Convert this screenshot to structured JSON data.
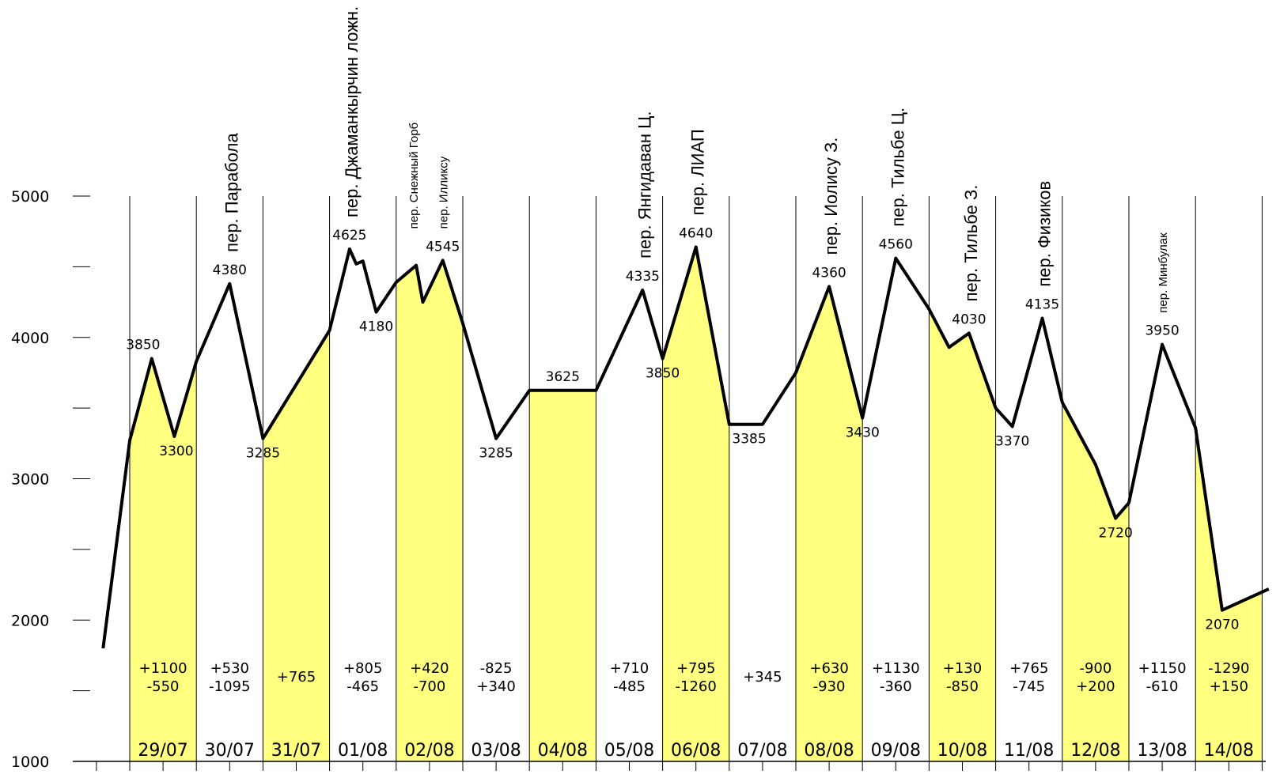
{
  "chart_data": {
    "type": "area",
    "title": "",
    "xlabel": "",
    "ylabel": "",
    "ylim": [
      1000,
      5000
    ],
    "yticks": [
      "1000",
      "2000",
      "3000",
      "4000",
      "5000"
    ],
    "fill_color": "#ffff80",
    "line_color": "#000000",
    "days": [
      {
        "date": "29/07",
        "highlighted": true,
        "delta": [
          "+1100",
          "-550"
        ]
      },
      {
        "date": "30/07",
        "highlighted": false,
        "delta": [
          "+530",
          "-1095"
        ]
      },
      {
        "date": "31/07",
        "highlighted": true,
        "delta": [
          "+765"
        ]
      },
      {
        "date": "01/08",
        "highlighted": false,
        "delta": [
          "+805",
          "-465"
        ]
      },
      {
        "date": "02/08",
        "highlighted": true,
        "delta": [
          "+420",
          "-700"
        ]
      },
      {
        "date": "03/08",
        "highlighted": false,
        "delta": [
          "-825",
          "+340"
        ]
      },
      {
        "date": "04/08",
        "highlighted": true,
        "delta": []
      },
      {
        "date": "05/08",
        "highlighted": false,
        "delta": [
          "+710",
          "-485"
        ]
      },
      {
        "date": "06/08",
        "highlighted": true,
        "delta": [
          "+795",
          "-1260"
        ]
      },
      {
        "date": "07/08",
        "highlighted": false,
        "delta": [
          "+345"
        ]
      },
      {
        "date": "08/08",
        "highlighted": true,
        "delta": [
          "+630",
          "-930"
        ]
      },
      {
        "date": "09/08",
        "highlighted": false,
        "delta": [
          "+1130",
          "-360"
        ]
      },
      {
        "date": "10/08",
        "highlighted": true,
        "delta": [
          "+130",
          "-850"
        ]
      },
      {
        "date": "11/08",
        "highlighted": false,
        "delta": [
          "+765",
          "-745"
        ]
      },
      {
        "date": "12/08",
        "highlighted": true,
        "delta": [
          "-900",
          "+200"
        ]
      },
      {
        "date": "13/08",
        "highlighted": false,
        "delta": [
          "+1150",
          "-610"
        ]
      },
      {
        "date": "14/08",
        "highlighted": true,
        "delta": [
          "-1290",
          "+150"
        ]
      }
    ],
    "profile": [
      [
        -0.4,
        1800
      ],
      [
        0.0,
        3270
      ],
      [
        0.33,
        3850
      ],
      [
        0.67,
        3300
      ],
      [
        1.0,
        3830
      ],
      [
        1.5,
        4380
      ],
      [
        2.0,
        3285
      ],
      [
        3.0,
        4050
      ],
      [
        3.3,
        4625
      ],
      [
        3.4,
        4520
      ],
      [
        3.5,
        4540
      ],
      [
        3.7,
        4180
      ],
      [
        4.0,
        4390
      ],
      [
        4.3,
        4510
      ],
      [
        4.4,
        4250
      ],
      [
        4.7,
        4545
      ],
      [
        5.0,
        4100
      ],
      [
        5.5,
        3285
      ],
      [
        6.0,
        3625
      ],
      [
        7.0,
        3625
      ],
      [
        7.7,
        4335
      ],
      [
        8.0,
        3850
      ],
      [
        8.5,
        4640
      ],
      [
        9.0,
        3385
      ],
      [
        9.5,
        3385
      ],
      [
        10.0,
        3750
      ],
      [
        10.5,
        4360
      ],
      [
        11.0,
        3430
      ],
      [
        11.5,
        4560
      ],
      [
        12.0,
        4200
      ],
      [
        12.3,
        3930
      ],
      [
        12.6,
        4030
      ],
      [
        13.0,
        3500
      ],
      [
        13.25,
        3370
      ],
      [
        13.7,
        4135
      ],
      [
        14.0,
        3540
      ],
      [
        14.5,
        3100
      ],
      [
        14.8,
        2720
      ],
      [
        15.0,
        2830
      ],
      [
        15.5,
        3950
      ],
      [
        16.0,
        3360
      ],
      [
        16.4,
        2070
      ],
      [
        17.1,
        2220
      ]
    ],
    "labels": [
      {
        "text": "3850",
        "x": 0.2,
        "y": 3850,
        "anchor": "above"
      },
      {
        "text": "3300",
        "x": 0.7,
        "y": 3300,
        "anchor": "below"
      },
      {
        "text": "4380",
        "x": 1.5,
        "y": 4380,
        "anchor": "above"
      },
      {
        "text": "3285",
        "x": 2.0,
        "y": 3285,
        "anchor": "below"
      },
      {
        "text": "4625",
        "x": 3.3,
        "y": 4625,
        "anchor": "above"
      },
      {
        "text": "4180",
        "x": 3.7,
        "y": 4180,
        "anchor": "below"
      },
      {
        "text": "4545",
        "x": 4.7,
        "y": 4545,
        "anchor": "above"
      },
      {
        "text": "3285",
        "x": 5.5,
        "y": 3285,
        "anchor": "below"
      },
      {
        "text": "3625",
        "x": 6.5,
        "y": 3625,
        "anchor": "above"
      },
      {
        "text": "4335",
        "x": 7.7,
        "y": 4335,
        "anchor": "above"
      },
      {
        "text": "3850",
        "x": 8.0,
        "y": 3850,
        "anchor": "below"
      },
      {
        "text": "4640",
        "x": 8.5,
        "y": 4640,
        "anchor": "above"
      },
      {
        "text": "3385",
        "x": 9.3,
        "y": 3385,
        "anchor": "below"
      },
      {
        "text": "4360",
        "x": 10.5,
        "y": 4360,
        "anchor": "above"
      },
      {
        "text": "3430",
        "x": 11.0,
        "y": 3430,
        "anchor": "below"
      },
      {
        "text": "4560",
        "x": 11.5,
        "y": 4560,
        "anchor": "above"
      },
      {
        "text": "4030",
        "x": 12.6,
        "y": 4030,
        "anchor": "above"
      },
      {
        "text": "3370",
        "x": 13.25,
        "y": 3370,
        "anchor": "below"
      },
      {
        "text": "4135",
        "x": 13.7,
        "y": 4135,
        "anchor": "above"
      },
      {
        "text": "2720",
        "x": 14.8,
        "y": 2720,
        "anchor": "below"
      },
      {
        "text": "3950",
        "x": 15.5,
        "y": 3950,
        "anchor": "above"
      },
      {
        "text": "2070",
        "x": 16.4,
        "y": 2070,
        "anchor": "below"
      }
    ],
    "passes": [
      {
        "text": "пер. Парабола",
        "x": 1.5,
        "y": 4380,
        "size": "large"
      },
      {
        "text": "пер. Джаманкырчин ложн.",
        "x": 3.3,
        "y": 4625,
        "size": "large"
      },
      {
        "text": "пер. Снежный Горб",
        "x": 4.25,
        "y": 4545,
        "size": "small"
      },
      {
        "text": "пер. Илликсу",
        "x": 4.7,
        "y": 4545,
        "size": "small"
      },
      {
        "text": "пер. Янгидаван Ц.",
        "x": 7.7,
        "y": 4335,
        "size": "large"
      },
      {
        "text": "пер. ЛИАП",
        "x": 8.5,
        "y": 4640,
        "size": "large"
      },
      {
        "text": "пер. Иолису З.",
        "x": 10.5,
        "y": 4360,
        "size": "large"
      },
      {
        "text": "пер. Тильбе Ц.",
        "x": 11.5,
        "y": 4560,
        "size": "large"
      },
      {
        "text": "пер. Тильбе З.",
        "x": 12.6,
        "y": 4030,
        "size": "large"
      },
      {
        "text": "пер. Физиков",
        "x": 13.7,
        "y": 4135,
        "size": "large"
      },
      {
        "text": "пер. Минбулак",
        "x": 15.5,
        "y": 3950,
        "size": "small"
      }
    ]
  }
}
